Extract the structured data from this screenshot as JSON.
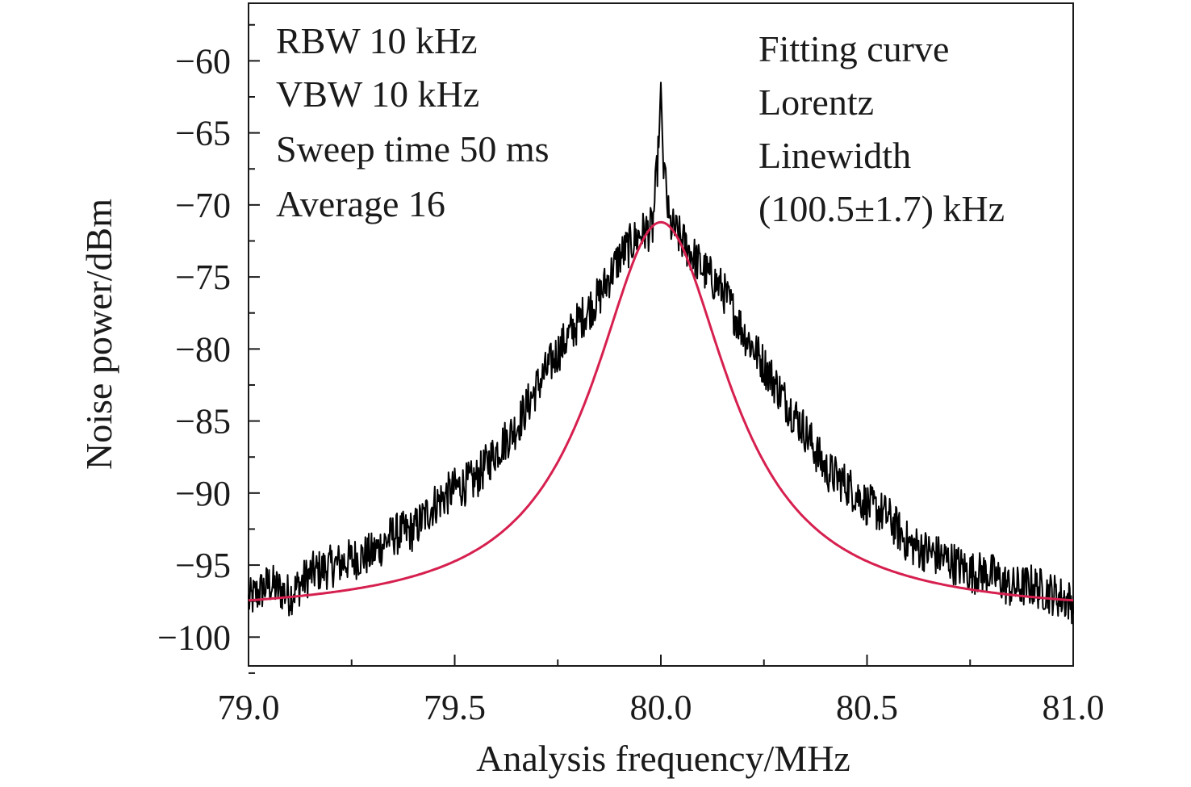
{
  "chart_data": {
    "type": "line",
    "title": "",
    "xlabel": "Analysis frequency/MHz",
    "ylabel": "Noise power/dBm",
    "xlim": [
      79.0,
      81.0
    ],
    "ylim": [
      -102,
      -56
    ],
    "x_ticks": [
      79.0,
      79.5,
      80.0,
      80.5,
      81.0
    ],
    "x_tick_labels": [
      "79.0",
      "79.5",
      "80.0",
      "80.5",
      "81.0"
    ],
    "y_ticks": [
      -60,
      -65,
      -70,
      -75,
      -80,
      -85,
      -90,
      -95,
      -100
    ],
    "y_tick_labels": [
      "−60",
      "−65",
      "−70",
      "−75",
      "−80",
      "−85",
      "−90",
      "−95",
      "−100"
    ],
    "grid": false,
    "legend": "none",
    "series": [
      {
        "color": "#000000",
        "x": [
          79.0,
          79.05,
          79.1,
          79.15,
          79.2,
          79.25,
          79.3,
          79.35,
          79.4,
          79.45,
          79.5,
          79.55,
          79.6,
          79.65,
          79.7,
          79.75,
          79.8,
          79.85,
          79.9,
          79.95,
          79.98,
          79.995,
          80.0,
          80.005,
          80.02,
          80.05,
          80.1,
          80.15,
          80.2,
          80.25,
          80.3,
          80.35,
          80.4,
          80.45,
          80.5,
          80.55,
          80.6,
          80.65,
          80.7,
          80.75,
          80.8,
          80.85,
          80.9,
          80.95,
          81.0
        ],
        "y": [
          -97.5,
          -96.3,
          -97.1,
          -95.6,
          -95.1,
          -94.6,
          -94.2,
          -92.9,
          -92.6,
          -90.8,
          -89.7,
          -89.1,
          -87.1,
          -85.4,
          -82.6,
          -80.2,
          -78.1,
          -76.4,
          -73.6,
          -72.0,
          -71.6,
          -66.0,
          -61.5,
          -66.5,
          -71.3,
          -72.4,
          -74.4,
          -75.9,
          -78.8,
          -81.1,
          -83.5,
          -85.7,
          -88.4,
          -89.4,
          -90.8,
          -91.6,
          -93.5,
          -94.1,
          -94.7,
          -95.5,
          -95.6,
          -96.6,
          -96.4,
          -97.0,
          -97.6
        ]
      },
      {
        "color": "#d6204f",
        "function": "lorentz",
        "center": 80.0,
        "peak": -71.2,
        "floor": -98.5,
        "x": [
          79.0,
          79.1,
          79.2,
          79.3,
          79.4,
          79.5,
          79.6,
          79.7,
          79.8,
          79.9,
          80.0,
          80.1,
          80.2,
          80.3,
          80.4,
          80.5,
          80.6,
          80.7,
          80.8,
          80.9,
          81.0
        ],
        "y": [
          -97.1,
          -96.5,
          -95.6,
          -94.4,
          -92.3,
          -89.6,
          -86.2,
          -82.1,
          -77.8,
          -73.5,
          -71.2,
          -73.5,
          -77.8,
          -82.1,
          -86.2,
          -89.6,
          -92.3,
          -94.4,
          -95.6,
          -96.5,
          -97.1
        ]
      }
    ],
    "annotations": {
      "settings": [
        "RBW 10 kHz",
        "VBW 10 kHz",
        "Sweep time 50 ms",
        "Average 16"
      ],
      "fit": [
        "Fitting curve",
        "Lorentz",
        "Linewidth",
        "(100.5±1.7) kHz"
      ]
    }
  }
}
